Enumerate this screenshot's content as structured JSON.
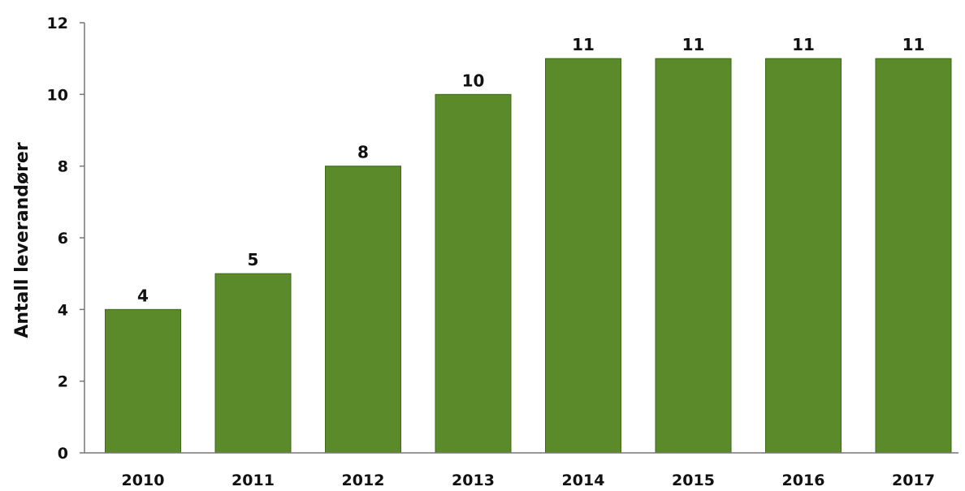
{
  "chart_data": {
    "type": "bar",
    "title": "",
    "xlabel": "",
    "ylabel": "Antall leverandører",
    "categories": [
      "2010",
      "2011",
      "2012",
      "2013",
      "2014",
      "2015",
      "2016",
      "2017"
    ],
    "values": [
      4,
      5,
      8,
      10,
      11,
      11,
      11,
      11
    ],
    "data_labels": [
      "4",
      "5",
      "8",
      "10",
      "11",
      "11",
      "11",
      "11"
    ],
    "ylim": [
      0,
      12
    ],
    "yticks": [
      0,
      2,
      4,
      6,
      8,
      10,
      12
    ],
    "ytick_labels": [
      "0",
      "2",
      "4",
      "6",
      "8",
      "10",
      "12"
    ],
    "grid": false,
    "legend": "none",
    "bar_color": "#5a8a2a",
    "bar_edge_color": "#3f6a1a"
  }
}
